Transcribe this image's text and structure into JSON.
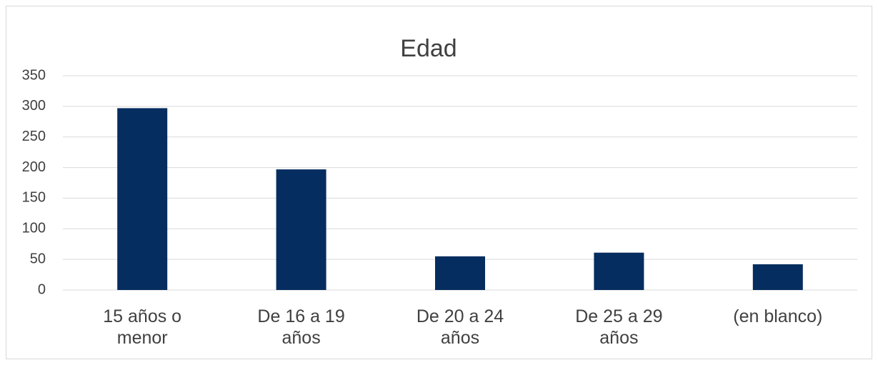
{
  "chart_data": {
    "type": "bar",
    "title": "Edad",
    "categories": [
      "15 años o menor",
      "De 16 a 19 años",
      "De 20 a 24 años",
      "De 25 a 29 años",
      "(en blanco)"
    ],
    "values": [
      297,
      197,
      55,
      61,
      42
    ],
    "color": "#062d5f",
    "ylim": [
      0,
      350
    ],
    "yticks": [
      0,
      50,
      100,
      150,
      200,
      250,
      300,
      350
    ],
    "grid": true
  }
}
